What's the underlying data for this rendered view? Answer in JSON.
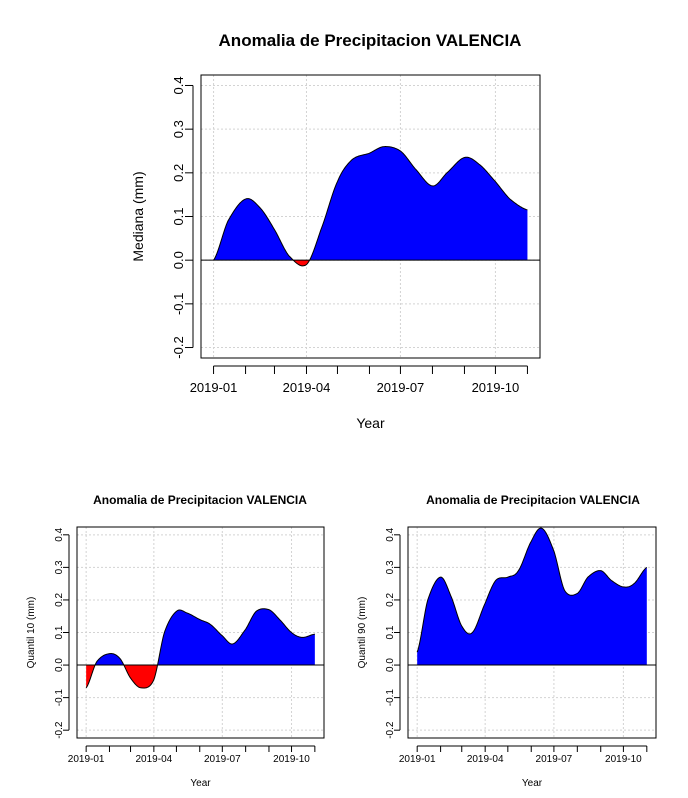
{
  "chart_data": [
    {
      "type": "area",
      "title": "Anomalia de Precipitacion VALENCIA",
      "xlabel": "Year",
      "ylabel": "Mediana (mm)",
      "ylim": [
        -0.2,
        0.4
      ],
      "yticks": [
        "-0.2",
        "-0.1",
        "0.0",
        "0.1",
        "0.2",
        "0.3",
        "0.4"
      ],
      "xticks": [
        "2019-01",
        "2019-04",
        "2019-07",
        "2019-10"
      ],
      "grid": true,
      "positive_color": "#0000ff",
      "negative_color": "#ff0000",
      "series": [
        {
          "x": [
            "2019-01-01",
            "2019-01-15",
            "2019-02-01",
            "2019-02-15",
            "2019-03-01",
            "2019-03-15",
            "2019-04-01",
            "2019-04-15",
            "2019-05-01",
            "2019-05-15",
            "2019-06-01",
            "2019-06-15",
            "2019-07-01",
            "2019-07-15",
            "2019-08-01",
            "2019-08-15",
            "2019-09-01",
            "2019-09-15",
            "2019-10-01",
            "2019-10-15",
            "2019-11-01"
          ],
          "values": [
            0.0,
            0.09,
            0.14,
            0.12,
            0.07,
            0.01,
            -0.01,
            0.07,
            0.18,
            0.23,
            0.245,
            0.26,
            0.25,
            0.21,
            0.17,
            0.2,
            0.235,
            0.22,
            0.18,
            0.14,
            0.115
          ]
        }
      ]
    },
    {
      "type": "area",
      "title": "Anomalia de Precipitacion VALENCIA",
      "xlabel": "Year",
      "ylabel": "Quantil 10 (mm)",
      "ylim": [
        -0.2,
        0.4
      ],
      "yticks": [
        "-0.2",
        "-0.1",
        "0.0",
        "0.1",
        "0.2",
        "0.3",
        "0.4"
      ],
      "xticks": [
        "2019-01",
        "2019-04",
        "2019-07",
        "2019-10"
      ],
      "grid": true,
      "positive_color": "#0000ff",
      "negative_color": "#ff0000",
      "series": [
        {
          "x": [
            "2019-01-01",
            "2019-01-15",
            "2019-02-01",
            "2019-02-15",
            "2019-03-01",
            "2019-03-15",
            "2019-04-01",
            "2019-04-15",
            "2019-05-01",
            "2019-05-15",
            "2019-06-01",
            "2019-06-15",
            "2019-07-01",
            "2019-07-15",
            "2019-08-01",
            "2019-08-15",
            "2019-09-01",
            "2019-09-15",
            "2019-10-01",
            "2019-10-15",
            "2019-11-01"
          ],
          "values": [
            -0.07,
            0.01,
            0.035,
            0.02,
            -0.04,
            -0.07,
            -0.045,
            0.1,
            0.165,
            0.16,
            0.14,
            0.125,
            0.09,
            0.065,
            0.11,
            0.165,
            0.17,
            0.14,
            0.1,
            0.085,
            0.095
          ]
        }
      ]
    },
    {
      "type": "area",
      "title": "Anomalia de Precipitacion VALENCIA",
      "xlabel": "Year",
      "ylabel": "Quantil 90 (mm)",
      "ylim": [
        -0.2,
        0.4
      ],
      "yticks": [
        "-0.2",
        "-0.1",
        "0.0",
        "0.1",
        "0.2",
        "0.3",
        "0.4"
      ],
      "xticks": [
        "2019-01",
        "2019-04",
        "2019-07",
        "2019-10"
      ],
      "grid": true,
      "positive_color": "#0000ff",
      "negative_color": "#ff0000",
      "series": [
        {
          "x": [
            "2019-01-01",
            "2019-01-15",
            "2019-02-01",
            "2019-02-15",
            "2019-03-01",
            "2019-03-15",
            "2019-04-01",
            "2019-04-15",
            "2019-05-01",
            "2019-05-15",
            "2019-06-01",
            "2019-06-15",
            "2019-07-01",
            "2019-07-15",
            "2019-08-01",
            "2019-08-15",
            "2019-09-01",
            "2019-09-15",
            "2019-10-01",
            "2019-10-15",
            "2019-11-01"
          ],
          "values": [
            0.04,
            0.2,
            0.27,
            0.21,
            0.12,
            0.1,
            0.19,
            0.26,
            0.27,
            0.29,
            0.38,
            0.42,
            0.35,
            0.23,
            0.22,
            0.27,
            0.29,
            0.26,
            0.24,
            0.25,
            0.3
          ]
        }
      ]
    }
  ]
}
